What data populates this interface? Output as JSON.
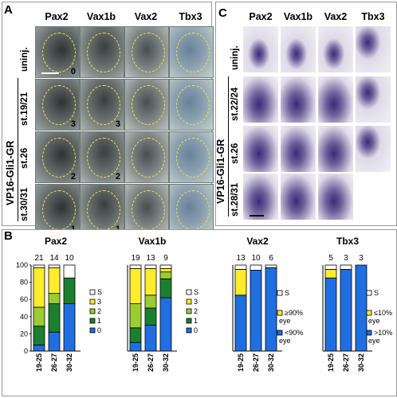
{
  "panels": {
    "A": {
      "letter": "A",
      "columns": [
        "Pax2",
        "Vax1b",
        "Vax2",
        "Tbx3"
      ],
      "rows": [
        {
          "label": "uninj.",
          "scores": [
            "0",
            "",
            "",
            ""
          ]
        },
        {
          "label": "st.19/21",
          "scores": [
            "3",
            "3",
            "",
            ""
          ]
        },
        {
          "label": "st.26",
          "scores": [
            "2",
            "2",
            "",
            ""
          ]
        },
        {
          "label": "st.30/31",
          "scores": [
            "1",
            "1",
            "",
            ""
          ]
        }
      ],
      "group_label": "VP16-Gli1-GR"
    },
    "C": {
      "letter": "C",
      "columns": [
        "Pax2",
        "Vax1b",
        "Vax2",
        "Tbx3"
      ],
      "rows": [
        {
          "label": "uninj."
        },
        {
          "label": "st.22/24"
        },
        {
          "label": "st.26"
        },
        {
          "label": "st.28/31"
        }
      ],
      "group_label": "VP16-Gli1-GR"
    },
    "B": {
      "letter": "B"
    }
  },
  "colors": {
    "S": "#ffffff",
    "score3": "#ffec2a",
    "score2": "#9acd32",
    "score1": "#1a7f2e",
    "score0": "#1f6fe0",
    "eye_outline": "#f0e23a",
    "stain": "#3a2a78"
  },
  "chart_data": [
    {
      "type": "bar",
      "stacked": true,
      "title": "Pax2",
      "categories": [
        "19-25",
        "26-27",
        "30-32"
      ],
      "counts": [
        "21",
        "14",
        "10"
      ],
      "ylim": [
        0,
        100
      ],
      "yticks": [
        "0",
        "20",
        "40",
        "60",
        "80",
        "100"
      ],
      "series": [
        {
          "name": "0",
          "color": "#1f6fe0",
          "values": [
            7,
            22,
            55
          ]
        },
        {
          "name": "1",
          "color": "#1a7f2e",
          "values": [
            22,
            33,
            30
          ]
        },
        {
          "name": "2",
          "color": "#9acd32",
          "values": [
            22,
            12,
            0
          ]
        },
        {
          "name": "3",
          "color": "#ffec2a",
          "values": [
            46,
            30,
            0
          ]
        },
        {
          "name": "S",
          "color": "#ffffff",
          "values": [
            3,
            3,
            15
          ]
        }
      ]
    },
    {
      "type": "bar",
      "stacked": true,
      "title": "Vax1b",
      "categories": [
        "19-25",
        "26-27",
        "30-32"
      ],
      "counts": [
        "19",
        "13",
        "9"
      ],
      "ylim": [
        0,
        100
      ],
      "yticks": [],
      "series": [
        {
          "name": "0",
          "color": "#1f6fe0",
          "values": [
            10,
            30,
            62
          ]
        },
        {
          "name": "1",
          "color": "#1a7f2e",
          "values": [
            17,
            20,
            22
          ]
        },
        {
          "name": "2",
          "color": "#9acd32",
          "values": [
            28,
            15,
            8
          ]
        },
        {
          "name": "3",
          "color": "#ffec2a",
          "values": [
            41,
            31,
            4
          ]
        },
        {
          "name": "S",
          "color": "#ffffff",
          "values": [
            4,
            4,
            4
          ]
        }
      ]
    },
    {
      "type": "bar",
      "stacked": true,
      "title": "Vax2",
      "categories": [
        "19-25",
        "26-27",
        "30-32"
      ],
      "counts": [
        "13",
        "10",
        "6"
      ],
      "ylim": [
        0,
        100
      ],
      "yticks": [],
      "series": [
        {
          "name": "<90% eye",
          "color": "#1f6fe0",
          "values": [
            65,
            94,
            97
          ]
        },
        {
          "name": "≥90% eye",
          "color": "#ffec2a",
          "values": [
            30,
            0,
            0
          ]
        },
        {
          "name": "S",
          "color": "#ffffff",
          "values": [
            5,
            6,
            3
          ]
        }
      ]
    },
    {
      "type": "bar",
      "stacked": true,
      "title": "Tbx3",
      "categories": [
        "19-25",
        "26-27",
        "30-32"
      ],
      "counts": [
        "5",
        "3",
        "3"
      ],
      "ylim": [
        0,
        100
      ],
      "yticks": [],
      "series": [
        {
          "name": ">10% eye",
          "color": "#1f6fe0",
          "values": [
            85,
            95,
            100
          ]
        },
        {
          "name": "≤10% eye",
          "color": "#ffec2a",
          "values": [
            10,
            0,
            0
          ]
        },
        {
          "name": "S",
          "color": "#ffffff",
          "values": [
            5,
            5,
            0
          ]
        }
      ]
    }
  ],
  "legends": [
    {
      "items": [
        {
          "label": "S",
          "color": "#ffffff"
        },
        {
          "label": "3",
          "color": "#ffec2a"
        },
        {
          "label": "2",
          "color": "#9acd32"
        },
        {
          "label": "1",
          "color": "#1a7f2e"
        },
        {
          "label": "0",
          "color": "#1f6fe0"
        }
      ]
    },
    {
      "items": [
        {
          "label": "S",
          "color": "#ffffff"
        },
        {
          "label": "3",
          "color": "#ffec2a"
        },
        {
          "label": "2",
          "color": "#9acd32"
        },
        {
          "label": "1",
          "color": "#1a7f2e"
        },
        {
          "label": "0",
          "color": "#1f6fe0"
        }
      ]
    },
    {
      "items": [
        {
          "label": "S",
          "color": "#ffffff"
        },
        {
          "label": "≥90%",
          "label2": "eye",
          "color": "#ffec2a"
        },
        {
          "label": "<90%",
          "label2": "eye",
          "color": "#1f6fe0"
        }
      ]
    },
    {
      "items": [
        {
          "label": "S",
          "color": "#ffffff"
        },
        {
          "label": "≤10%",
          "label2": "eye",
          "color": "#ffec2a"
        },
        {
          "label": ">10%",
          "label2": "eye",
          "color": "#1f6fe0"
        }
      ]
    }
  ]
}
